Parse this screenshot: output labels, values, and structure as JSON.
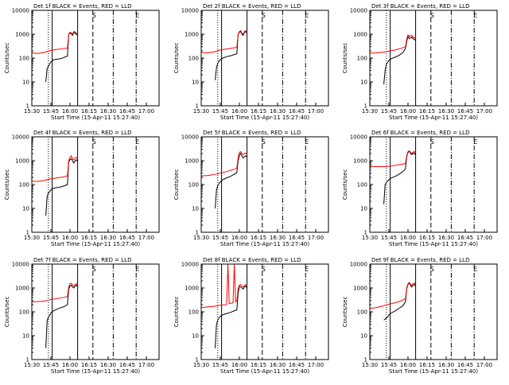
{
  "shared": {
    "title_suffix": "BLACK = Events, RED = LLD",
    "xlabel": "Start Time (15-Apr-11 15:27:40)",
    "ylabel": "Counts/sec",
    "x_ticks": [
      "15:30",
      "15:45",
      "16:00",
      "16:15",
      "16:30",
      "16:45",
      "17:00"
    ],
    "y_ticks": [
      "1",
      "10",
      "100",
      "1000",
      "10000"
    ],
    "marker_s": "S",
    "marker_e": "E"
  },
  "colors": {
    "events": "#000000",
    "lld": "#ff0000",
    "axes": "#000000"
  },
  "chart_data": [
    {
      "type": "line",
      "title": "Det 1f",
      "xlabel": "Start Time (15-Apr-11 15:27:40)",
      "ylabel": "Counts/sec",
      "yscale": "log",
      "ylim": [
        1,
        10000
      ],
      "xlim": [
        "15:30",
        "17:10"
      ],
      "vlines": {
        "dotted": "15:43",
        "solid": [
          "15:46",
          "16:06"
        ],
        "dashed": "16:18",
        "dashdot": [
          "16:34",
          "16:52"
        ]
      },
      "series": [
        {
          "name": "BLACK = Events",
          "x": [
            "15:41",
            "15:42",
            "15:43",
            "15:44",
            "15:45",
            "15:47",
            "15:50",
            "15:53",
            "15:56",
            "15:58",
            "15:59",
            "16:00",
            "16:01",
            "16:02",
            "16:03",
            "16:04",
            "16:05",
            "16:06"
          ],
          "values": [
            10,
            35,
            45,
            55,
            70,
            85,
            90,
            95,
            110,
            120,
            1000,
            1100,
            1050,
            900,
            1200,
            1100,
            1000,
            900
          ]
        },
        {
          "name": "RED = LLD",
          "x": [
            "15:30",
            "15:35",
            "15:40",
            "15:45",
            "15:50",
            "15:55",
            "15:58",
            "15:59",
            "16:00",
            "16:01",
            "16:02",
            "16:03",
            "16:04",
            "16:05",
            "16:06"
          ],
          "values": [
            165,
            155,
            175,
            210,
            230,
            250,
            260,
            1000,
            1200,
            1150,
            1000,
            1300,
            1250,
            1100,
            1000
          ]
        }
      ]
    },
    {
      "type": "line",
      "title": "Det 2f",
      "xlabel": "Start Time (15-Apr-11 15:27:40)",
      "ylabel": "Counts/sec",
      "yscale": "log",
      "ylim": [
        1,
        10000
      ],
      "xlim": [
        "15:30",
        "17:10"
      ],
      "vlines": {
        "dotted": "15:43",
        "solid": [
          "15:46",
          "16:06"
        ],
        "dashed": "16:18",
        "dashdot": [
          "16:34",
          "16:52"
        ]
      },
      "series": [
        {
          "name": "BLACK = Events",
          "x": [
            "15:41",
            "15:42",
            "15:43",
            "15:44",
            "15:45",
            "15:47",
            "15:50",
            "15:53",
            "15:56",
            "15:58",
            "15:59",
            "16:00",
            "16:01",
            "16:02",
            "16:03",
            "16:04",
            "16:05",
            "16:06"
          ],
          "values": [
            12,
            40,
            60,
            75,
            85,
            100,
            115,
            125,
            140,
            150,
            1000,
            1200,
            1300,
            1000,
            900,
            1200,
            1300,
            1100
          ]
        },
        {
          "name": "RED = LLD",
          "x": [
            "15:30",
            "15:35",
            "15:40",
            "15:45",
            "15:50",
            "15:55",
            "15:58",
            "15:59",
            "16:00",
            "16:01",
            "16:02",
            "16:03",
            "16:04",
            "16:05",
            "16:06"
          ],
          "values": [
            170,
            165,
            180,
            220,
            240,
            265,
            280,
            1000,
            1300,
            1400,
            1100,
            1000,
            1300,
            1400,
            1200
          ]
        }
      ]
    },
    {
      "type": "line",
      "title": "Det 3f",
      "xlabel": "Start Time (15-Apr-11 15:27:40)",
      "ylabel": "Counts/sec",
      "yscale": "log",
      "ylim": [
        1,
        10000
      ],
      "xlim": [
        "15:30",
        "17:10"
      ],
      "vlines": {
        "dotted": "15:43",
        "solid": [
          "15:46",
          "16:06"
        ],
        "dashed": "16:18",
        "dashdot": [
          "16:34",
          "16:52"
        ]
      },
      "series": [
        {
          "name": "BLACK = Events",
          "x": [
            "15:41",
            "15:42",
            "15:43",
            "15:44",
            "15:45",
            "15:47",
            "15:50",
            "15:53",
            "15:56",
            "15:58",
            "15:59",
            "16:00",
            "16:01",
            "16:02",
            "16:03",
            "16:04",
            "16:05",
            "16:06"
          ],
          "values": [
            8,
            30,
            55,
            65,
            80,
            95,
            110,
            130,
            170,
            250,
            500,
            800,
            650,
            700,
            750,
            650,
            600,
            550
          ]
        },
        {
          "name": "RED = LLD",
          "x": [
            "15:30",
            "15:35",
            "15:40",
            "15:45",
            "15:50",
            "15:55",
            "15:58",
            "15:59",
            "16:00",
            "16:01",
            "16:02",
            "16:03",
            "16:04",
            "16:05",
            "16:06"
          ],
          "values": [
            160,
            165,
            175,
            195,
            220,
            260,
            300,
            600,
            950,
            800,
            850,
            900,
            750,
            700,
            650
          ]
        }
      ]
    },
    {
      "type": "line",
      "title": "Det 4f",
      "xlabel": "Start Time (15-Apr-11 15:27:40)",
      "ylabel": "Counts/sec",
      "yscale": "log",
      "ylim": [
        1,
        10000
      ],
      "xlim": [
        "15:30",
        "17:10"
      ],
      "vlines": {
        "dotted": "15:43",
        "solid": [
          "15:46",
          "16:06"
        ],
        "dashed": "16:18",
        "dashdot": [
          "16:34",
          "16:52"
        ]
      },
      "series": [
        {
          "name": "BLACK = Events",
          "x": [
            "15:41",
            "15:42",
            "15:43",
            "15:44",
            "15:45",
            "15:47",
            "15:50",
            "15:53",
            "15:56",
            "15:58",
            "15:59",
            "16:00",
            "16:01",
            "16:02",
            "16:03",
            "16:04",
            "16:05",
            "16:06"
          ],
          "values": [
            5,
            30,
            45,
            50,
            60,
            70,
            75,
            80,
            90,
            100,
            900,
            1100,
            1200,
            1000,
            800,
            1000,
            1100,
            900
          ]
        },
        {
          "name": "RED = LLD",
          "x": [
            "15:30",
            "15:35",
            "15:40",
            "15:45",
            "15:50",
            "15:55",
            "15:58",
            "15:59",
            "16:00",
            "16:01",
            "16:02",
            "16:03",
            "16:04",
            "16:05",
            "16:06"
          ],
          "values": [
            140,
            135,
            150,
            175,
            190,
            210,
            230,
            1000,
            1400,
            1600,
            1200,
            1100,
            1300,
            1400,
            1200
          ]
        }
      ]
    },
    {
      "type": "line",
      "title": "Det 5f",
      "xlabel": "Start Time (15-Apr-11 15:27:40)",
      "ylabel": "Counts/sec",
      "yscale": "log",
      "ylim": [
        1,
        10000
      ],
      "xlim": [
        "15:30",
        "17:10"
      ],
      "vlines": {
        "dotted": "15:43",
        "solid": [
          "15:46",
          "16:06"
        ],
        "dashed": "16:18",
        "dashdot": [
          "16:34",
          "16:52"
        ]
      },
      "series": [
        {
          "name": "BLACK = Events",
          "x": [
            "15:41",
            "15:42",
            "15:43",
            "15:44",
            "15:45",
            "15:47",
            "15:50",
            "15:53",
            "15:56",
            "15:58",
            "15:59",
            "16:00",
            "16:01",
            "16:02",
            "16:03",
            "16:04",
            "16:05",
            "16:06"
          ],
          "values": [
            10,
            60,
            90,
            110,
            130,
            160,
            190,
            220,
            270,
            320,
            1000,
            1700,
            2000,
            1600,
            1300,
            1500,
            1600,
            1400
          ]
        },
        {
          "name": "RED = LLD",
          "x": [
            "15:30",
            "15:35",
            "15:40",
            "15:45",
            "15:50",
            "15:55",
            "15:58",
            "15:59",
            "16:00",
            "16:01",
            "16:02",
            "16:03",
            "16:04",
            "16:05",
            "16:06"
          ],
          "values": [
            230,
            240,
            260,
            300,
            350,
            420,
            480,
            1300,
            2200,
            2400,
            2000,
            1800,
            2000,
            2100,
            1800
          ]
        }
      ]
    },
    {
      "type": "line",
      "title": "Det 6f",
      "xlabel": "Start Time (15-Apr-11 15:27:40)",
      "ylabel": "Counts/sec",
      "yscale": "log",
      "ylim": [
        1,
        10000
      ],
      "xlim": [
        "15:30",
        "17:10"
      ],
      "vlines": {
        "dotted": "15:43",
        "solid": [
          "15:46",
          "16:06"
        ],
        "dashed": "16:18",
        "dashdot": [
          "16:34",
          "16:52"
        ]
      },
      "series": [
        {
          "name": "BLACK = Events",
          "x": [
            "15:41",
            "15:42",
            "15:43",
            "15:44",
            "15:45",
            "15:47",
            "15:50",
            "15:53",
            "15:56",
            "15:58",
            "15:59",
            "16:00",
            "16:01",
            "16:02",
            "16:03",
            "16:04",
            "16:05",
            "16:06"
          ],
          "values": [
            15,
            100,
            120,
            140,
            160,
            190,
            220,
            270,
            350,
            450,
            1500,
            2200,
            2500,
            2000,
            1800,
            2000,
            2100,
            1700
          ]
        },
        {
          "name": "RED = LLD",
          "x": [
            "15:30",
            "15:35",
            "15:40",
            "15:45",
            "15:50",
            "15:55",
            "15:58",
            "15:59",
            "16:00",
            "16:01",
            "16:02",
            "16:03",
            "16:04",
            "16:05",
            "16:06"
          ],
          "values": [
            580,
            560,
            560,
            580,
            640,
            700,
            760,
            1600,
            2400,
            2600,
            2200,
            2000,
            2300,
            2400,
            2100
          ]
        }
      ]
    },
    {
      "type": "line",
      "title": "Det 7f",
      "xlabel": "Start Time (15-Apr-11 15:27:40)",
      "ylabel": "Counts/sec",
      "yscale": "log",
      "ylim": [
        1,
        10000
      ],
      "xlim": [
        "15:30",
        "17:10"
      ],
      "vlines": {
        "dotted": "15:43",
        "solid": [
          "15:46",
          "16:06"
        ],
        "dashed": "16:18",
        "dashdot": [
          "16:34",
          "16:52"
        ]
      },
      "series": [
        {
          "name": "BLACK = Events",
          "x": [
            "15:41",
            "15:42",
            "15:43",
            "15:44",
            "15:45",
            "15:47",
            "15:50",
            "15:53",
            "15:56",
            "15:58",
            "15:59",
            "16:00",
            "16:01",
            "16:02",
            "16:03",
            "16:04",
            "16:05",
            "16:06"
          ],
          "values": [
            3,
            40,
            60,
            70,
            90,
            110,
            130,
            150,
            170,
            200,
            900,
            1200,
            1300,
            1100,
            1000,
            1200,
            1300,
            1100
          ]
        },
        {
          "name": "RED = LLD",
          "x": [
            "15:30",
            "15:35",
            "15:40",
            "15:45",
            "15:50",
            "15:55",
            "15:58",
            "15:59",
            "16:00",
            "16:01",
            "16:02",
            "16:03",
            "16:04",
            "16:05",
            "16:06"
          ],
          "values": [
            260,
            270,
            280,
            330,
            360,
            400,
            440,
            1100,
            1500,
            1600,
            1300,
            1200,
            1400,
            1500,
            1300
          ]
        }
      ]
    },
    {
      "type": "line",
      "title": "Det 8f",
      "xlabel": "Start Time (15-Apr-11 15:27:40)",
      "ylabel": "Counts/sec",
      "yscale": "log",
      "ylim": [
        1,
        10000
      ],
      "xlim": [
        "15:30",
        "17:10"
      ],
      "vlines": {
        "dotted": "15:43",
        "solid": [
          "15:46",
          "16:06"
        ],
        "dashed": "16:18",
        "dashdot": [
          "16:34",
          "16:52"
        ]
      },
      "series": [
        {
          "name": "BLACK = Events",
          "x": [
            "15:41",
            "15:42",
            "15:43",
            "15:44",
            "15:45",
            "15:47",
            "15:50",
            "15:53",
            "15:56",
            "15:58",
            "15:59",
            "16:00",
            "16:01",
            "16:02",
            "16:03",
            "16:04",
            "16:05",
            "16:06"
          ],
          "values": [
            3,
            30,
            45,
            55,
            65,
            75,
            85,
            95,
            110,
            120,
            600,
            1200,
            1100,
            1000,
            900,
            1100,
            1200,
            1000
          ]
        },
        {
          "name": "RED = LLD",
          "x": [
            "15:30",
            "15:35",
            "15:40",
            "15:45",
            "15:50",
            "15:51",
            "15:52",
            "15:55",
            "15:56",
            "15:57",
            "15:58",
            "15:59",
            "16:00",
            "16:01",
            "16:02",
            "16:03",
            "16:04",
            "16:05",
            "16:06"
          ],
          "values": [
            150,
            160,
            170,
            190,
            200,
            10000,
            220,
            240,
            10000,
            260,
            280,
            900,
            1300,
            1400,
            1200,
            1100,
            1300,
            1400,
            1200
          ]
        }
      ]
    },
    {
      "type": "line",
      "title": "Det 9f",
      "xlabel": "Start Time (15-Apr-11 15:27:40)",
      "ylabel": "Counts/sec",
      "yscale": "log",
      "ylim": [
        1,
        10000
      ],
      "xlim": [
        "15:30",
        "17:10"
      ],
      "vlines": {
        "dotted": "15:43",
        "solid": [
          "15:46",
          "16:06"
        ],
        "dashed": "16:18",
        "dashdot": [
          "16:34",
          "16:52"
        ]
      },
      "series": [
        {
          "name": "BLACK = Events",
          "x": [
            "15:41",
            "15:42",
            "15:43",
            "15:44",
            "15:45",
            "15:47",
            "15:50",
            "15:53",
            "15:56",
            "15:58",
            "15:59",
            "16:00",
            "16:01",
            "16:02",
            "16:03",
            "16:04",
            "16:05",
            "16:06"
          ],
          "values": [
            45,
            50,
            55,
            60,
            75,
            90,
            110,
            140,
            180,
            260,
            900,
            1400,
            1600,
            1300,
            1100,
            1300,
            1400,
            1200
          ]
        },
        {
          "name": "RED = LLD",
          "x": [
            "15:30",
            "15:35",
            "15:40",
            "15:45",
            "15:50",
            "15:55",
            "15:58",
            "15:59",
            "16:00",
            "16:01",
            "16:02",
            "16:03",
            "16:04",
            "16:05",
            "16:06"
          ],
          "values": [
            140,
            150,
            175,
            210,
            240,
            290,
            360,
            1000,
            1500,
            1700,
            1400,
            1300,
            1500,
            1600,
            1400
          ]
        }
      ]
    }
  ]
}
